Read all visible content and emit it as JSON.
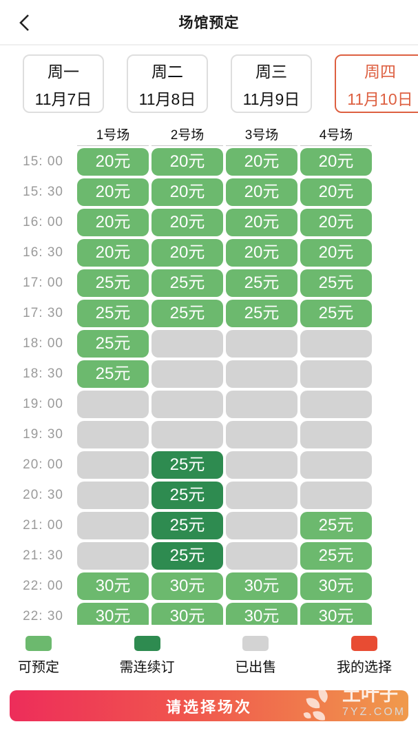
{
  "header": {
    "title": "场馆预定"
  },
  "date_tabs": [
    {
      "weekday": "周一",
      "date": "11月7日",
      "selected": false
    },
    {
      "weekday": "周二",
      "date": "11月8日",
      "selected": false
    },
    {
      "weekday": "周三",
      "date": "11月9日",
      "selected": false
    },
    {
      "weekday": "周四",
      "date": "11月10日",
      "selected": true
    }
  ],
  "courts": [
    "1号场",
    "2号场",
    "3号场",
    "4号场"
  ],
  "time_slots": [
    {
      "time": "15: 00",
      "cells": [
        {
          "price": "20元",
          "status": "available"
        },
        {
          "price": "20元",
          "status": "available"
        },
        {
          "price": "20元",
          "status": "available"
        },
        {
          "price": "20元",
          "status": "available"
        }
      ]
    },
    {
      "time": "15: 30",
      "cells": [
        {
          "price": "20元",
          "status": "available"
        },
        {
          "price": "20元",
          "status": "available"
        },
        {
          "price": "20元",
          "status": "available"
        },
        {
          "price": "20元",
          "status": "available"
        }
      ]
    },
    {
      "time": "16: 00",
      "cells": [
        {
          "price": "20元",
          "status": "available"
        },
        {
          "price": "20元",
          "status": "available"
        },
        {
          "price": "20元",
          "status": "available"
        },
        {
          "price": "20元",
          "status": "available"
        }
      ]
    },
    {
      "time": "16: 30",
      "cells": [
        {
          "price": "20元",
          "status": "available"
        },
        {
          "price": "20元",
          "status": "available"
        },
        {
          "price": "20元",
          "status": "available"
        },
        {
          "price": "20元",
          "status": "available"
        }
      ]
    },
    {
      "time": "17: 00",
      "cells": [
        {
          "price": "25元",
          "status": "available"
        },
        {
          "price": "25元",
          "status": "available"
        },
        {
          "price": "25元",
          "status": "available"
        },
        {
          "price": "25元",
          "status": "available"
        }
      ]
    },
    {
      "time": "17: 30",
      "cells": [
        {
          "price": "25元",
          "status": "available"
        },
        {
          "price": "25元",
          "status": "available"
        },
        {
          "price": "25元",
          "status": "available"
        },
        {
          "price": "25元",
          "status": "available"
        }
      ]
    },
    {
      "time": "18: 00",
      "cells": [
        {
          "price": "25元",
          "status": "available"
        },
        {
          "price": "",
          "status": "sold"
        },
        {
          "price": "",
          "status": "sold"
        },
        {
          "price": "",
          "status": "sold"
        }
      ]
    },
    {
      "time": "18: 30",
      "cells": [
        {
          "price": "25元",
          "status": "available"
        },
        {
          "price": "",
          "status": "sold"
        },
        {
          "price": "",
          "status": "sold"
        },
        {
          "price": "",
          "status": "sold"
        }
      ]
    },
    {
      "time": "19: 00",
      "cells": [
        {
          "price": "",
          "status": "sold"
        },
        {
          "price": "",
          "status": "sold"
        },
        {
          "price": "",
          "status": "sold"
        },
        {
          "price": "",
          "status": "sold"
        }
      ]
    },
    {
      "time": "19: 30",
      "cells": [
        {
          "price": "",
          "status": "sold"
        },
        {
          "price": "",
          "status": "sold"
        },
        {
          "price": "",
          "status": "sold"
        },
        {
          "price": "",
          "status": "sold"
        }
      ]
    },
    {
      "time": "20: 00",
      "cells": [
        {
          "price": "",
          "status": "sold"
        },
        {
          "price": "25元",
          "status": "consecutive"
        },
        {
          "price": "",
          "status": "sold"
        },
        {
          "price": "",
          "status": "sold"
        }
      ]
    },
    {
      "time": "20: 30",
      "cells": [
        {
          "price": "",
          "status": "sold"
        },
        {
          "price": "25元",
          "status": "consecutive"
        },
        {
          "price": "",
          "status": "sold"
        },
        {
          "price": "",
          "status": "sold"
        }
      ]
    },
    {
      "time": "21: 00",
      "cells": [
        {
          "price": "",
          "status": "sold"
        },
        {
          "price": "25元",
          "status": "consecutive"
        },
        {
          "price": "",
          "status": "sold"
        },
        {
          "price": "25元",
          "status": "available"
        }
      ]
    },
    {
      "time": "21: 30",
      "cells": [
        {
          "price": "",
          "status": "sold"
        },
        {
          "price": "25元",
          "status": "consecutive"
        },
        {
          "price": "",
          "status": "sold"
        },
        {
          "price": "25元",
          "status": "available"
        }
      ]
    },
    {
      "time": "22: 00",
      "cells": [
        {
          "price": "30元",
          "status": "available"
        },
        {
          "price": "30元",
          "status": "available"
        },
        {
          "price": "30元",
          "status": "available"
        },
        {
          "price": "30元",
          "status": "available"
        }
      ]
    },
    {
      "time": "22: 30",
      "cells": [
        {
          "price": "30元",
          "status": "available"
        },
        {
          "price": "30元",
          "status": "available"
        },
        {
          "price": "30元",
          "status": "available"
        },
        {
          "price": "30元",
          "status": "available"
        }
      ]
    }
  ],
  "legend": [
    {
      "label": "可预定",
      "color": "#6cb96e"
    },
    {
      "label": "需连续订",
      "color": "#2e8b50"
    },
    {
      "label": "已出售",
      "color": "#d3d3d3"
    },
    {
      "label": "我的选择",
      "color": "#e84c33"
    }
  ],
  "footer": {
    "button_label": "请选择场次"
  },
  "watermark": {
    "name": "土叶子",
    "domain": "7YZ.COM"
  },
  "colors": {
    "accent_selected_tab": "#dd5f40",
    "button_gradient_left": "#ed2d5a",
    "button_gradient_right": "#f09a4c"
  }
}
